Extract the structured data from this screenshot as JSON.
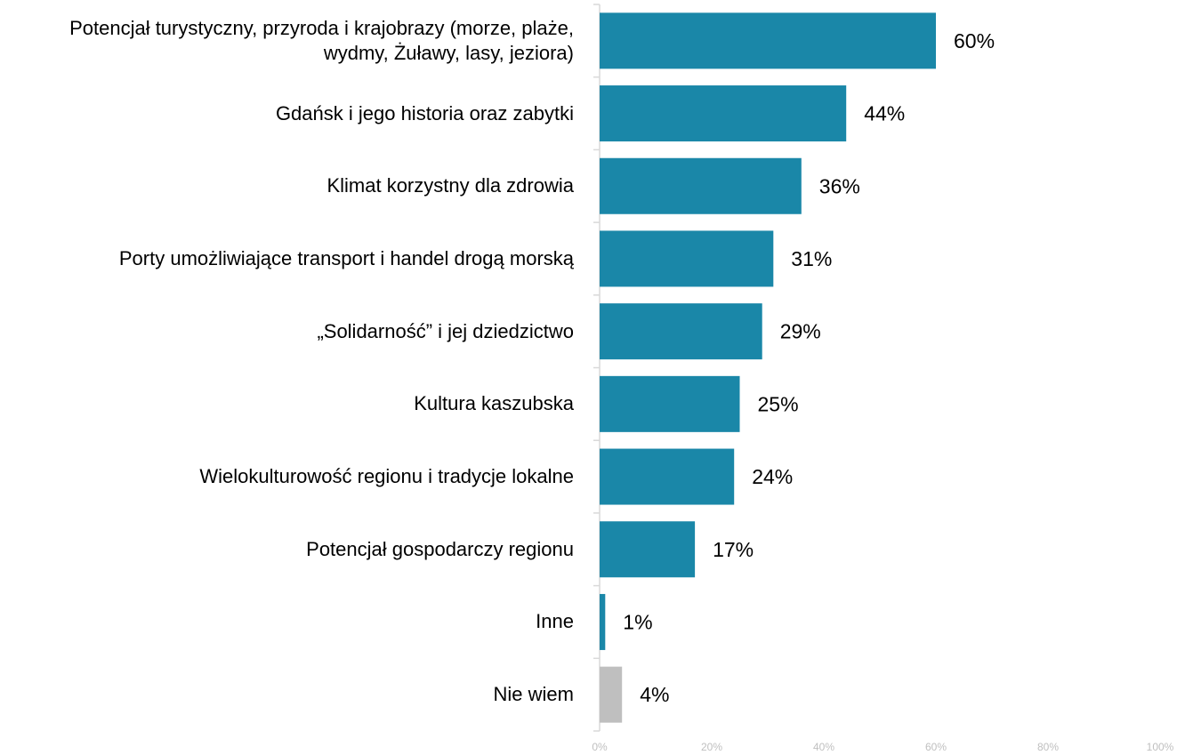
{
  "chart_data": {
    "type": "bar",
    "orientation": "horizontal",
    "categories": [
      "Potencjał turystyczny, przyroda i krajobrazy (morze, plaże, wydmy, Żuławy, lasy, jeziora)",
      "Gdańsk i jego historia oraz zabytki",
      "Klimat korzystny dla zdrowia",
      "Porty umożliwiające transport i handel drogą morską",
      "„Solidarność” i jej dziedzictwo",
      "Kultura kaszubska",
      "Wielokulturowość regionu i tradycje lokalne",
      "Potencjał gospodarczy regionu",
      "Inne",
      "Nie wiem"
    ],
    "values": [
      60,
      44,
      36,
      31,
      29,
      25,
      24,
      17,
      1,
      4
    ],
    "value_labels": [
      "60%",
      "44%",
      "36%",
      "31%",
      "29%",
      "25%",
      "24%",
      "17%",
      "1%",
      "4%"
    ],
    "colors": [
      "#1a87a8",
      "#1a87a8",
      "#1a87a8",
      "#1a87a8",
      "#1a87a8",
      "#1a87a8",
      "#1a87a8",
      "#1a87a8",
      "#1a87a8",
      "#bfbfbf"
    ],
    "xlim": [
      0,
      100
    ],
    "xticks": [
      {
        "value": 0,
        "label": "0%"
      },
      {
        "value": 20,
        "label": "20%"
      },
      {
        "value": 40,
        "label": "40%"
      },
      {
        "value": 60,
        "label": "60%"
      },
      {
        "value": 80,
        "label": "80%"
      },
      {
        "value": 100,
        "label": "100%"
      }
    ],
    "grid": false
  }
}
